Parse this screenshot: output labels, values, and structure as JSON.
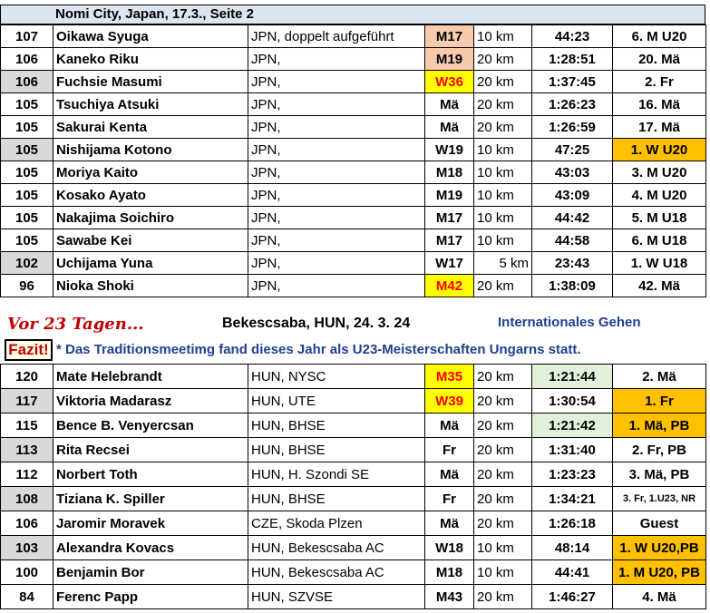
{
  "header": {
    "title": "Nomi City, Japan, 17.3.,   Seite 2"
  },
  "table1": [
    {
      "pts": "107",
      "name": "Oikawa Syuga",
      "club": "JPN, doppelt aufgeführt",
      "cat": "M17",
      "dist": "10 km",
      "time": "44:23",
      "place": "6. M U20"
    },
    {
      "pts": "106",
      "name": "Kaneko Riku",
      "club": "JPN,",
      "cat": "M19",
      "dist": "20 km",
      "time": "1:28:51",
      "place": "20. Mä"
    },
    {
      "pts": "106",
      "name": "Fuchsie Masumi",
      "club": "JPN,",
      "cat": "W36",
      "dist": "20 km",
      "time": "1:37:45",
      "place": "2. Fr"
    },
    {
      "pts": "105",
      "name": "Tsuchiya Atsuki",
      "club": "JPN,",
      "cat": "Mä",
      "dist": "20 km",
      "time": "1:26:23",
      "place": "16. Mä"
    },
    {
      "pts": "105",
      "name": "Sakurai Kenta",
      "club": "JPN,",
      "cat": "Mä",
      "dist": "20 km",
      "time": "1:26:59",
      "place": "17. Mä"
    },
    {
      "pts": "105",
      "name": "Nishijama Kotono",
      "club": "JPN,",
      "cat": "W19",
      "dist": "10 km",
      "time": "47:25",
      "place": "1. W U20"
    },
    {
      "pts": "105",
      "name": "Moriya Kaito",
      "club": "JPN,",
      "cat": "M18",
      "dist": "10 km",
      "time": "43:03",
      "place": "3. M U20"
    },
    {
      "pts": "105",
      "name": "Kosako Ayato",
      "club": "JPN,",
      "cat": "M19",
      "dist": "10 km",
      "time": "43:09",
      "place": "4. M U20"
    },
    {
      "pts": "105",
      "name": "Nakajima Soichiro",
      "club": "JPN,",
      "cat": "M17",
      "dist": "10 km",
      "time": "44:42",
      "place": "5. M U18"
    },
    {
      "pts": "105",
      "name": "Sawabe Kei",
      "club": "JPN,",
      "cat": "M17",
      "dist": "10 km",
      "time": "44:58",
      "place": "6. M U18"
    },
    {
      "pts": "102",
      "name": "Uchijama Yuna",
      "club": "JPN,",
      "cat": "W17",
      "dist": "5 km",
      "time": "23:43",
      "place": "1. W U18"
    },
    {
      "pts": "96",
      "name": "Nioka Shoki",
      "club": "JPN,",
      "cat": "M42",
      "dist": "20 km",
      "time": "1:38:09",
      "place": "42. Mä"
    }
  ],
  "separator": {
    "ago": "Vor 23 Tagen...",
    "event": "Bekescsaba, HUN, 24. 3. 24",
    "type": "Internationales Gehen",
    "fazit": "Fazit!",
    "note": "* Das Traditionsmeetimg fand dieses Jahr als U23-Meisterschaften Ungarns statt."
  },
  "table2": [
    {
      "pts": "120",
      "name": "Mate Helebrandt",
      "club": "HUN, NYSC",
      "cat": "M35",
      "dist": "20 km",
      "time": "1:21:44",
      "place": "2. Mä"
    },
    {
      "pts": "117",
      "name": "Viktoria Madarasz",
      "club": "HUN, UTE",
      "cat": "W39",
      "dist": "20 km",
      "time": "1:30:54",
      "place": "1. Fr"
    },
    {
      "pts": "115",
      "name": "Bence B. Venyercsan",
      "club": "HUN, BHSE",
      "cat": "Mä",
      "dist": "20 km",
      "time": "1:21:42",
      "place": "1. Mä, PB"
    },
    {
      "pts": "113",
      "name": "Rita Recsei",
      "club": "HUN, BHSE",
      "cat": "Fr",
      "dist": "20 km",
      "time": "1:31:40",
      "place": "2. Fr, PB"
    },
    {
      "pts": "112",
      "name": "Norbert Toth",
      "club": "HUN, H. Szondi SE",
      "cat": "Mä",
      "dist": "20 km",
      "time": "1:23:23",
      "place": "3. Mä, PB"
    },
    {
      "pts": "108",
      "name": "Tiziana K. Spiller",
      "club": "HUN, BHSE",
      "cat": "Fr",
      "dist": "20 km",
      "time": "1:34:21",
      "place": "3. Fr, 1.U23, NR"
    },
    {
      "pts": "106",
      "name": "Jaromir Moravek",
      "club": "CZE, Skoda Plzen",
      "cat": "Mä",
      "dist": "20 km",
      "time": "1:26:18",
      "place": "Guest"
    },
    {
      "pts": "103",
      "name": "Alexandra Kovacs",
      "club": "HUN, Bekescsaba AC",
      "cat": "W18",
      "dist": "10 km",
      "time": "48:14",
      "place": "1. W U20,PB"
    },
    {
      "pts": "100",
      "name": "Benjamin Bor",
      "club": "HUN, Bekescsaba AC",
      "cat": "M18",
      "dist": "10 km",
      "time": "44:41",
      "place": "1. M U20, PB"
    },
    {
      "pts": "84",
      "name": "Ferenc Papp",
      "club": "HUN, SZVSE",
      "cat": "M43",
      "dist": "20 km",
      "time": "1:46:27",
      "place": "4. Mä"
    }
  ],
  "colors": {
    "header_bg": "#dce6f1",
    "gray": "#d9d9d9",
    "salmon": "#f8cbad",
    "yellow": "#ffff00",
    "orange": "#ffc000",
    "light_green": "#e2efda",
    "red_text": "#ff0000",
    "note_blue": "#1f3f8f"
  }
}
